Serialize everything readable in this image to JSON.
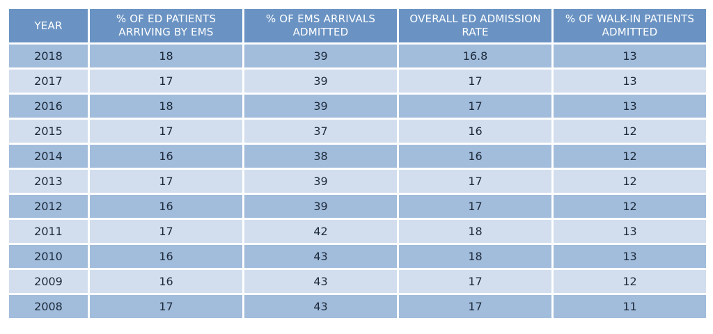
{
  "table": {
    "headers": [
      "YEAR",
      "% OF ED PATIENTS ARRIVING BY EMS",
      "% OF EMS ARRIVALS ADMITTED",
      "OVERALL ED ADMISSION RATE",
      "% OF WALK-IN PATIENTS ADMITTED"
    ],
    "rows": [
      [
        "2018",
        "18",
        "39",
        "16.8",
        "13"
      ],
      [
        "2017",
        "17",
        "39",
        "17",
        "13"
      ],
      [
        "2016",
        "18",
        "39",
        "17",
        "13"
      ],
      [
        "2015",
        "17",
        "37",
        "16",
        "12"
      ],
      [
        "2014",
        "16",
        "38",
        "16",
        "12"
      ],
      [
        "2013",
        "17",
        "39",
        "17",
        "12"
      ],
      [
        "2012",
        "16",
        "39",
        "17",
        "12"
      ],
      [
        "2011",
        "17",
        "42",
        "18",
        "13"
      ],
      [
        "2010",
        "16",
        "43",
        "18",
        "13"
      ],
      [
        "2009",
        "16",
        "43",
        "17",
        "12"
      ],
      [
        "2008",
        "17",
        "43",
        "17",
        "11"
      ]
    ]
  },
  "colors": {
    "header_bg": "#6a93c3",
    "row_dark": "#a2bcdb",
    "row_light": "#d2deee"
  }
}
